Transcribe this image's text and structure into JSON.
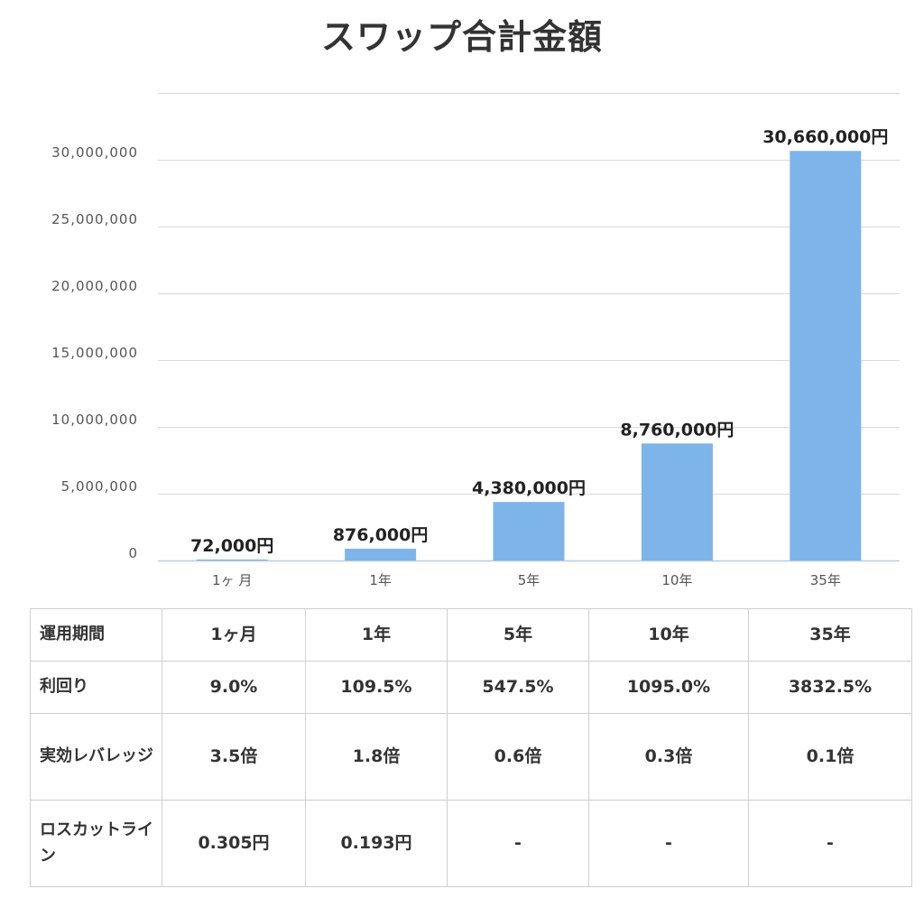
{
  "chart_data": {
    "type": "bar",
    "title": "スワップ合計金額",
    "categories": [
      "1ヶ 月",
      "1年",
      "5年",
      "10年",
      "35年"
    ],
    "values": [
      72000,
      876000,
      4380000,
      8760000,
      30660000
    ],
    "data_labels": [
      "72,000円",
      "876,000円",
      "4,380,000円",
      "8,760,000円",
      "30,660,000円"
    ],
    "y_ticks": [
      0,
      5000000,
      10000000,
      15000000,
      20000000,
      25000000,
      30000000
    ],
    "y_tick_labels": [
      "0",
      "5,000,000",
      "10,000,000",
      "15,000,000",
      "20,000,000",
      "25,000,000",
      "30,000,000"
    ],
    "ylim": [
      0,
      35000000
    ],
    "grid": true,
    "bar_color": "#7db4ea"
  },
  "table": {
    "columns": [
      "運用期間",
      "1ヶ月",
      "1年",
      "5年",
      "10年",
      "35年"
    ],
    "rows": [
      [
        "利回り",
        "9.0%",
        "109.5%",
        "547.5%",
        "1095.0%",
        "3832.5%"
      ],
      [
        "実効レバレッジ",
        "3.5倍",
        "1.8倍",
        "0.6倍",
        "0.3倍",
        "0.1倍"
      ],
      [
        "ロスカットライン",
        "0.305円",
        "0.193円",
        "-",
        "-",
        "-"
      ]
    ]
  }
}
